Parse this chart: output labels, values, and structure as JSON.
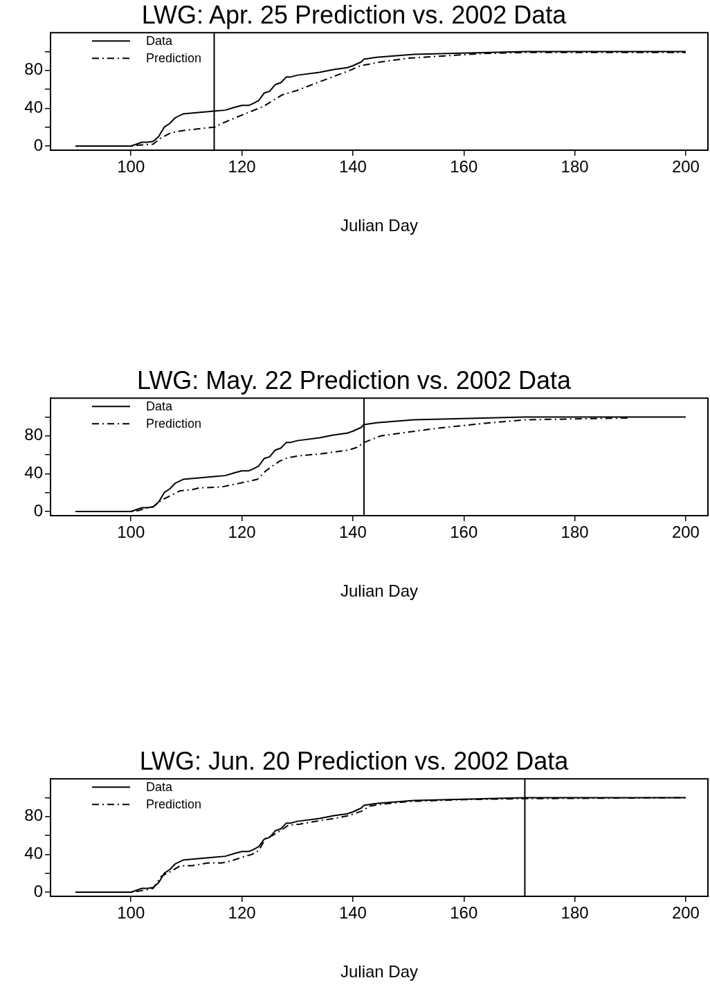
{
  "chart_data": [
    {
      "type": "line",
      "title": "LWG: Apr. 25 Prediction vs. 2002 Data",
      "xlabel": "Julian Day",
      "xlim": [
        85.5,
        204
      ],
      "xticks": [
        100,
        120,
        140,
        160,
        180,
        200
      ],
      "ylim": [
        -4.4,
        120
      ],
      "yticks": [
        0,
        {
          "value": 20,
          "label": null
        },
        40,
        {
          "value": 60,
          "label": null
        },
        80,
        {
          "value": 100,
          "label": null
        }
      ],
      "legend": "top left",
      "series": [
        {
          "name": "Data",
          "color": "#000000",
          "line_style": "solid",
          "x": [
            90,
            95,
            100,
            101,
            102,
            103,
            104,
            105,
            106,
            107,
            108,
            109.4,
            115,
            117,
            118.7,
            120,
            121.2,
            122,
            123,
            124,
            125,
            126,
            127,
            128,
            128.7,
            130,
            134,
            136.5,
            139,
            140,
            141.5,
            142,
            144.3,
            151,
            171,
            200
          ],
          "values": [
            0,
            0,
            0,
            2,
            4,
            4,
            5,
            10,
            20,
            24,
            30,
            34,
            37,
            38,
            41,
            43,
            43,
            45,
            48,
            56,
            58,
            65,
            67,
            73,
            73,
            75,
            78,
            81,
            83,
            85,
            89,
            92,
            94,
            97,
            100,
            100
          ]
        },
        {
          "name": "Prediction",
          "color": "#000000",
          "line_style": "dashed",
          "x": [
            90,
            100,
            101.4,
            104,
            105.5,
            107.2,
            108.9,
            111.8,
            115.1,
            116.4,
            120.1,
            123.9,
            127.2,
            130,
            134,
            139,
            141.4,
            145,
            150,
            155.4,
            163.7,
            171,
            200
          ],
          "values": [
            0,
            0,
            1,
            2,
            9,
            14,
            16,
            18,
            20,
            24,
            33,
            42,
            54,
            59,
            68,
            79,
            85,
            89,
            93,
            95,
            98,
            99,
            99
          ]
        }
      ],
      "ref_lines": [
        {
          "axis": "x",
          "value": 115,
          "color": "#000000"
        }
      ]
    },
    {
      "type": "line",
      "title": "LWG: May. 22 Prediction vs. 2002 Data",
      "xlabel": "Julian Day",
      "xlim": [
        85.5,
        204
      ],
      "xticks": [
        100,
        120,
        140,
        160,
        180,
        200
      ],
      "ylim": [
        -4.4,
        120
      ],
      "yticks": [
        0,
        {
          "value": 20,
          "label": null
        },
        40,
        {
          "value": 60,
          "label": null
        },
        80,
        {
          "value": 100,
          "label": null
        }
      ],
      "legend": "top left",
      "series": [
        {
          "name": "Data",
          "color": "#000000",
          "line_style": "solid",
          "x": [
            90,
            95,
            100,
            101,
            102,
            103,
            104,
            105,
            106,
            107,
            108,
            109.4,
            115,
            117,
            118.7,
            120,
            121.2,
            122,
            123,
            124,
            125,
            126,
            127,
            128,
            128.7,
            130,
            134,
            136.5,
            139,
            140,
            141.5,
            142,
            144.3,
            151,
            171,
            200
          ],
          "values": [
            0,
            0,
            0,
            2,
            4,
            4,
            5,
            10,
            20,
            24,
            30,
            34,
            37,
            38,
            41,
            43,
            43,
            45,
            48,
            56,
            58,
            65,
            67,
            73,
            73,
            75,
            78,
            81,
            83,
            85,
            89,
            92,
            94,
            97,
            100,
            100
          ]
        },
        {
          "name": "Prediction",
          "color": "#000000",
          "line_style": "dashed",
          "x": [
            90,
            100,
            101.4,
            103,
            104,
            105.5,
            107.2,
            108.9,
            111,
            112.3,
            116.4,
            118,
            121.3,
            122.8,
            124.3,
            126.7,
            128.3,
            130.4,
            134.2,
            139.2,
            140.8,
            142,
            145,
            150,
            155,
            160,
            165,
            171,
            180,
            190
          ],
          "values": [
            0,
            0,
            1,
            4,
            5,
            12,
            17,
            22,
            23,
            25,
            26,
            28,
            32,
            34,
            43,
            53,
            57,
            59,
            61,
            65,
            68,
            73,
            80,
            84,
            88,
            91,
            94,
            97,
            98,
            99
          ]
        }
      ],
      "ref_lines": [
        {
          "axis": "x",
          "value": 142,
          "color": "#000000"
        }
      ]
    },
    {
      "type": "line",
      "title": "LWG: Jun. 20 Prediction vs. 2002 Data",
      "xlabel": "Julian Day",
      "xlim": [
        85.5,
        204
      ],
      "xticks": [
        100,
        120,
        140,
        160,
        180,
        200
      ],
      "ylim": [
        -4.4,
        120
      ],
      "yticks": [
        0,
        {
          "value": 20,
          "label": null
        },
        40,
        {
          "value": 60,
          "label": null
        },
        80,
        {
          "value": 100,
          "label": null
        }
      ],
      "legend": "top left",
      "series": [
        {
          "name": "Data",
          "color": "#000000",
          "line_style": "solid",
          "x": [
            90,
            95,
            100,
            101,
            102,
            103,
            104,
            105,
            106,
            107,
            108,
            109.4,
            115,
            117,
            118.7,
            120,
            121.2,
            122,
            123,
            124,
            125,
            126,
            127,
            128,
            128.7,
            130,
            134,
            136.5,
            139,
            140,
            141.5,
            142,
            144.3,
            151,
            171,
            200
          ],
          "values": [
            0,
            0,
            0,
            2,
            4,
            4,
            5,
            10,
            20,
            24,
            30,
            34,
            37,
            38,
            41,
            43,
            43,
            45,
            48,
            56,
            58,
            65,
            67,
            73,
            73,
            75,
            78,
            81,
            83,
            85,
            89,
            92,
            94,
            97,
            100,
            100
          ]
        },
        {
          "name": "Prediction",
          "color": "#000000",
          "line_style": "dashed",
          "x": [
            90,
            100,
            101.4,
            104,
            105.5,
            107.2,
            108.9,
            111,
            113.9,
            116.4,
            118,
            120.6,
            121.8,
            123,
            124.3,
            125.5,
            127.2,
            128.4,
            130.4,
            134.2,
            136.7,
            139.2,
            141.7,
            143,
            145,
            150,
            160,
            171,
            200
          ],
          "values": [
            0,
            0,
            1,
            4,
            17,
            22,
            28,
            28,
            31,
            31,
            33,
            38,
            40,
            44,
            57,
            60,
            66,
            71,
            72,
            76,
            78,
            81,
            86,
            91,
            93,
            96,
            98,
            99,
            100
          ]
        }
      ],
      "ref_lines": [
        {
          "axis": "x",
          "value": 171,
          "color": "#000000"
        }
      ]
    }
  ]
}
